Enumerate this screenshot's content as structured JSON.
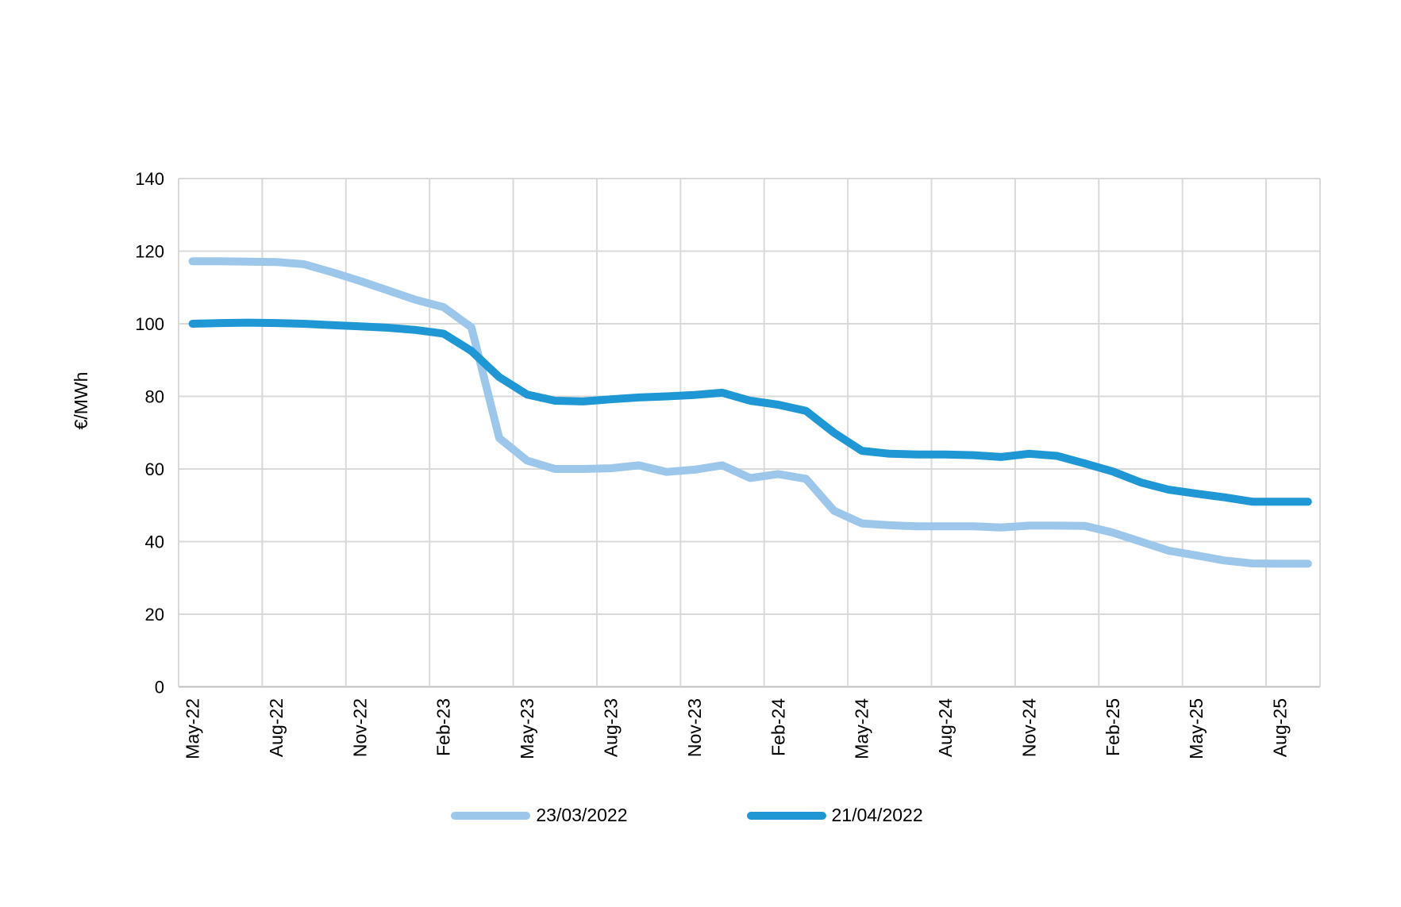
{
  "chart_data": {
    "type": "line",
    "title": "",
    "xlabel": "",
    "ylabel": "€/MWh",
    "ylim": [
      0,
      140
    ],
    "ytick_step": 20,
    "yticks": [
      0,
      20,
      40,
      60,
      80,
      100,
      120,
      140
    ],
    "x_tick_labels": [
      "May-22",
      "Aug-22",
      "Nov-22",
      "Feb-23",
      "May-23",
      "Aug-23",
      "Nov-23",
      "Feb-24",
      "May-24",
      "Aug-24",
      "Nov-24",
      "Feb-25",
      "May-25",
      "Aug-25"
    ],
    "x_tick_every_months": 3,
    "x": [
      "May-22",
      "Jun-22",
      "Jul-22",
      "Aug-22",
      "Sep-22",
      "Oct-22",
      "Nov-22",
      "Dec-22",
      "Jan-23",
      "Feb-23",
      "Mar-23",
      "Apr-23",
      "May-23",
      "Jun-23",
      "Jul-23",
      "Aug-23",
      "Sep-23",
      "Oct-23",
      "Nov-23",
      "Dec-23",
      "Jan-24",
      "Feb-24",
      "Mar-24",
      "Apr-24",
      "May-24",
      "Jun-24",
      "Jul-24",
      "Aug-24",
      "Sep-24",
      "Oct-24",
      "Nov-24",
      "Dec-24",
      "Jan-25",
      "Feb-25",
      "Mar-25",
      "Apr-25",
      "May-25",
      "Jun-25",
      "Jul-25",
      "Aug-25",
      "Sep-25"
    ],
    "grid": true,
    "legend_position": "bottom",
    "colors": {
      "background": "#FFFFFF",
      "gridline": "#D9D9D9",
      "axis_line": "#BFBFBF",
      "text": "#000000"
    },
    "series": [
      {
        "name": "23/03/2022",
        "color": "#9CC7EA",
        "values": [
          117.2,
          117.2,
          117.1,
          117.0,
          116.4,
          114.2,
          111.8,
          109.2,
          106.6,
          104.6,
          99.0,
          68.5,
          62.3,
          60.0,
          60.0,
          60.2,
          61.0,
          59.2,
          59.8,
          61.0,
          57.5,
          58.6,
          57.3,
          48.5,
          45.0,
          44.5,
          44.2,
          44.2,
          44.2,
          43.9,
          44.4,
          44.4,
          44.3,
          42.5,
          40.0,
          37.5,
          36.2,
          34.8,
          34.0,
          33.9,
          33.9
        ]
      },
      {
        "name": "21/04/2022",
        "color": "#2097D5",
        "values": [
          100.0,
          100.2,
          100.3,
          100.2,
          100.0,
          99.6,
          99.3,
          98.9,
          98.3,
          97.3,
          92.5,
          85.3,
          80.5,
          78.8,
          78.6,
          79.2,
          79.7,
          80.0,
          80.4,
          81.0,
          78.8,
          77.7,
          76.0,
          70.0,
          65.0,
          64.2,
          64.0,
          64.0,
          63.8,
          63.3,
          64.2,
          63.6,
          61.5,
          59.3,
          56.3,
          54.3,
          53.2,
          52.2,
          51.0,
          51.0,
          51.0
        ]
      }
    ]
  },
  "legend": {
    "items": [
      {
        "label": "23/03/2022"
      },
      {
        "label": "21/04/2022"
      }
    ]
  }
}
